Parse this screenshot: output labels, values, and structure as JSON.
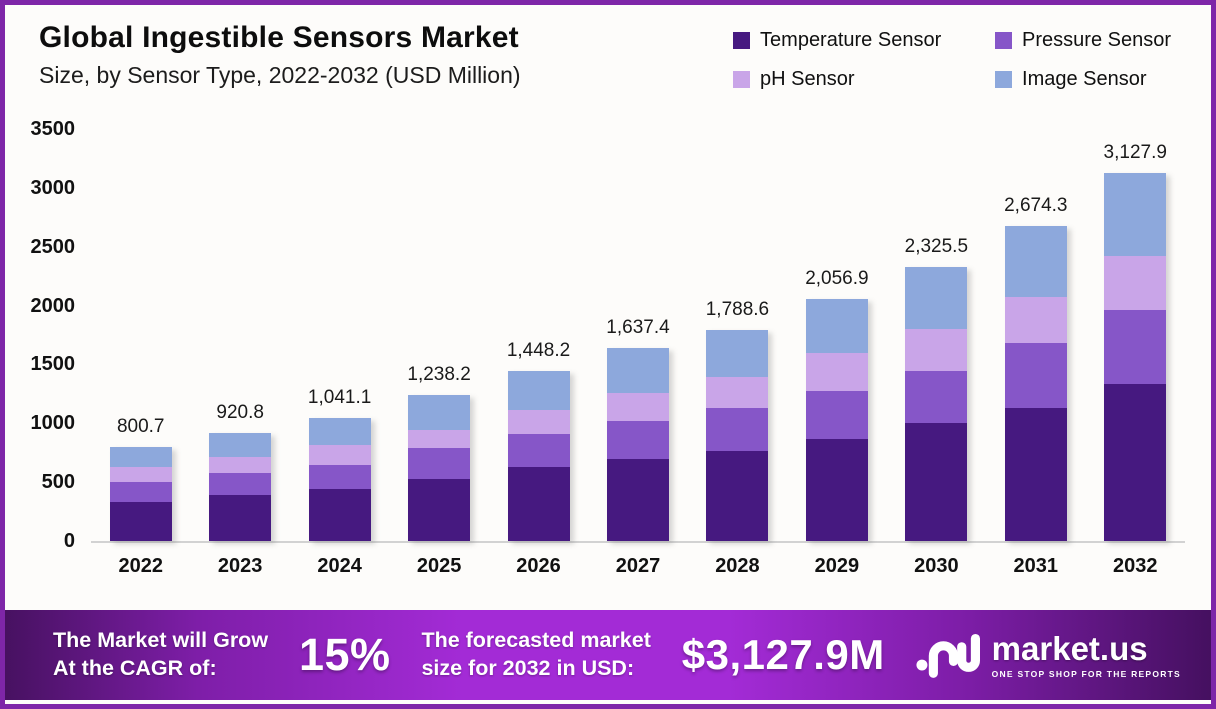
{
  "frame": {
    "border_color": "#7E26A8",
    "background": "#FDFCFA"
  },
  "header": {
    "title": "Global Ingestible Sensors Market",
    "subtitle": "Size, by Sensor Type, 2022-2032 (USD Million)"
  },
  "legend": [
    {
      "label": "Temperature Sensor",
      "color": "#461980"
    },
    {
      "label": "Pressure Sensor",
      "color": "#8656C8"
    },
    {
      "label": "pH Sensor",
      "color": "#C9A5E8"
    },
    {
      "label": "Image Sensor",
      "color": "#8DA8DC"
    }
  ],
  "chart_data": {
    "type": "bar",
    "stacked": true,
    "title": "Global Ingestible Sensors Market Size, by Sensor Type, 2022-2032 (USD Million)",
    "xlabel": "",
    "ylabel": "",
    "ylim": [
      0,
      3500
    ],
    "yticks": [
      0,
      500,
      1000,
      1500,
      2000,
      2500,
      3000,
      3500
    ],
    "grid": false,
    "legend_position": "top-right",
    "categories": [
      "2022",
      "2023",
      "2024",
      "2025",
      "2026",
      "2027",
      "2028",
      "2029",
      "2030",
      "2031",
      "2032"
    ],
    "series": [
      {
        "name": "Temperature Sensor",
        "color": "#461980",
        "values": [
          335.0,
          392.0,
          439.0,
          524.0,
          629.0,
          694.0,
          765.0,
          870.0,
          1006.0,
          1133.0,
          1332.0
        ]
      },
      {
        "name": "Pressure Sensor",
        "color": "#8656C8",
        "values": [
          167.0,
          183.0,
          204.0,
          265.0,
          283.0,
          326.0,
          368.0,
          405.0,
          439.0,
          553.0,
          632.0
        ]
      },
      {
        "name": "pH Sensor",
        "color": "#C9A5E8",
        "values": [
          131.0,
          142.0,
          170.0,
          156.0,
          199.0,
          240.0,
          263.0,
          320.0,
          360.0,
          388.0,
          459.0
        ]
      },
      {
        "name": "Image Sensor",
        "color": "#8DA8DC",
        "values": [
          167.7,
          203.8,
          228.1,
          293.2,
          337.2,
          377.4,
          392.6,
          461.9,
          520.5,
          600.3,
          704.9
        ]
      }
    ],
    "totals": [
      800.7,
      920.8,
      1041.1,
      1238.2,
      1448.2,
      1637.4,
      1788.6,
      2056.9,
      2325.5,
      2674.3,
      3127.9
    ],
    "total_labels": [
      "800.7",
      "920.8",
      "1,041.1",
      "1,238.2",
      "1,448.2",
      "1,637.4",
      "1,788.6",
      "2,056.9",
      "2,325.5",
      "2,674.3",
      "3,127.9"
    ]
  },
  "footer": {
    "growth_text_line1": "The Market will Grow",
    "growth_text_line2": "At the CAGR of:",
    "cagr_value": "15%",
    "forecast_text_line1": "The forecasted market",
    "forecast_text_line2": "size for 2032 in USD:",
    "forecast_value": "$3,127.9M",
    "brand": {
      "icon": "marketus-logo",
      "name": "market.us",
      "tagline": "ONE STOP SHOP FOR THE REPORTS"
    }
  }
}
